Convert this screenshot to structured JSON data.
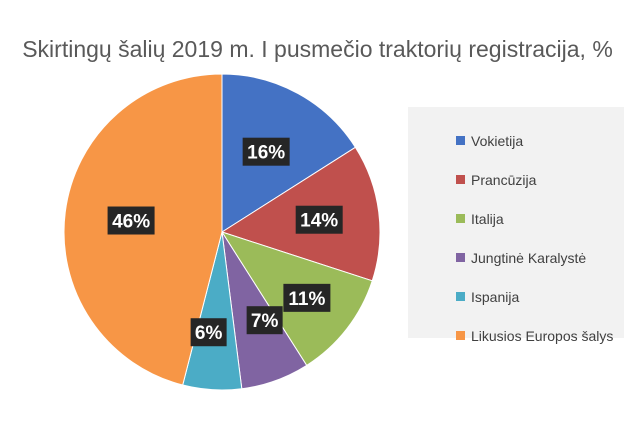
{
  "chart_data": {
    "type": "pie",
    "title": "Skirtingų šalių 2019 m. I pusmečio traktorių registracija, %",
    "categories": [
      "Vokietija",
      "Prancūzija",
      "Italija",
      "Jungtinė Karalystė",
      "Ispanija",
      "Likusios Europos šalys"
    ],
    "values": [
      16,
      14,
      11,
      7,
      6,
      46
    ],
    "data_labels": [
      "16%",
      "14%",
      "11%",
      "7%",
      "6%",
      "46%"
    ],
    "colors": [
      "#4472c4",
      "#c0504d",
      "#9bbb59",
      "#8064a2",
      "#4bacc6",
      "#f79646"
    ],
    "legend_position": "right",
    "start_angle": "top, clockwise"
  }
}
